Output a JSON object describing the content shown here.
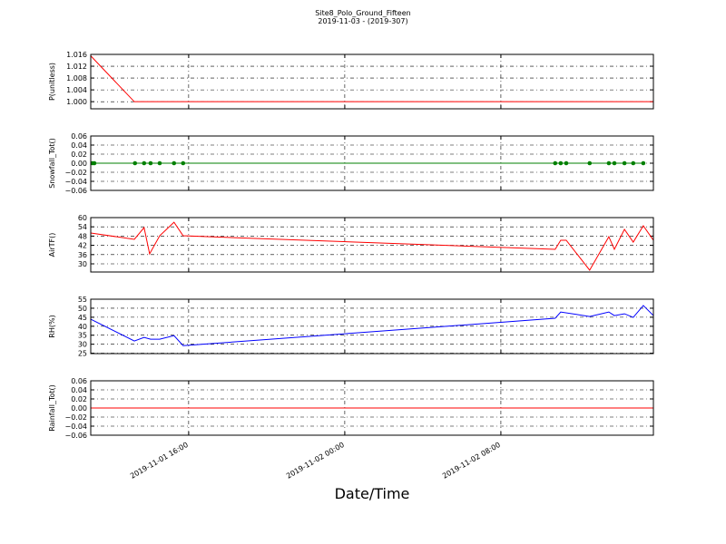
{
  "figure": {
    "title": "Site8_Polo_Ground_Fifteen",
    "subtitle": "2019-11-03 - (2019-307)",
    "x_label": "Date/Time",
    "xlim": [
      "2019-11-01 10:59",
      "2019-11-02 15:49"
    ],
    "xticks": [
      "2019-11-01 16:00",
      "2019-11-02 00:00",
      "2019-11-02 08:00"
    ]
  },
  "chart_data": [
    {
      "type": "line",
      "y_label": "P(unitless)",
      "color": "#ff0000",
      "grid": true,
      "x": [
        "2019-11-01 10:59",
        "2019-11-01 13:13",
        "2019-11-02 15:49"
      ],
      "values": [
        1.0155,
        1.0,
        1.0
      ],
      "ylim": [
        0.9976,
        1.016
      ],
      "yticks": [
        {
          "value": 1.0,
          "label": "1.000"
        },
        1.004,
        1.008,
        1.012,
        1.016
      ]
    },
    {
      "type": "line",
      "markers": true,
      "y_label": "Snowfall_Tot()",
      "color": "#008000",
      "grid": true,
      "x": [
        "2019-11-01 11:04",
        "2019-11-01 11:10",
        "2019-11-01 13:15",
        "2019-11-01 13:43",
        "2019-11-01 14:03",
        "2019-11-01 14:31",
        "2019-11-01 15:15",
        "2019-11-01 15:43",
        "2019-11-02 10:47",
        "2019-11-02 11:04",
        "2019-11-02 11:21",
        "2019-11-02 12:33",
        "2019-11-02 13:32",
        "2019-11-02 13:49",
        "2019-11-02 14:20",
        "2019-11-02 14:47",
        "2019-11-02 15:18"
      ],
      "values": [
        0,
        0,
        0,
        0,
        0,
        0,
        0,
        0,
        0,
        0,
        0,
        0,
        0,
        0,
        0,
        0,
        0
      ],
      "ylim": [
        -0.06,
        0.06
      ],
      "yticks": [
        {
          "value": -0.06,
          "label": "−0.06"
        },
        {
          "value": -0.04,
          "label": "−0.04"
        },
        {
          "value": -0.02,
          "label": "−0.02"
        },
        {
          "value": 0,
          "label": "0.00"
        },
        0.02,
        0.04,
        0.06
      ]
    },
    {
      "type": "line",
      "y_label": "AirTF()",
      "color": "#ff0000",
      "grid": true,
      "x": [
        "2019-11-01 10:59",
        "2019-11-01 13:13",
        "2019-11-01 13:43",
        "2019-11-01 14:00",
        "2019-11-01 14:31",
        "2019-11-01 15:15",
        "2019-11-01 15:43",
        "2019-11-02 10:47",
        "2019-11-02 11:04",
        "2019-11-02 11:21",
        "2019-11-02 12:33",
        "2019-11-02 13:32",
        "2019-11-02 13:49",
        "2019-11-02 14:20",
        "2019-11-02 14:47",
        "2019-11-02 15:18",
        "2019-11-02 15:49"
      ],
      "values": [
        50,
        45.9,
        53.5,
        36.5,
        48.2,
        57,
        48.2,
        39.4,
        45.3,
        45.3,
        25.9,
        47.6,
        39.4,
        52.4,
        44.1,
        54.7,
        45.3
      ],
      "ylim": [
        24.7,
        60
      ],
      "yticks": [
        30,
        36,
        42,
        48,
        54,
        60
      ]
    },
    {
      "type": "line",
      "y_label": "RH(%)",
      "color": "#0000ff",
      "grid": true,
      "x": [
        "2019-11-01 10:59",
        "2019-11-01 13:13",
        "2019-11-01 13:43",
        "2019-11-01 14:03",
        "2019-11-01 14:31",
        "2019-11-01 15:15",
        "2019-11-01 15:43",
        "2019-11-02 10:47",
        "2019-11-02 11:04",
        "2019-11-02 12:33",
        "2019-11-02 13:32",
        "2019-11-02 13:49",
        "2019-11-02 14:20",
        "2019-11-02 14:47",
        "2019-11-02 15:18",
        "2019-11-02 15:49"
      ],
      "values": [
        43.9,
        31.8,
        33.8,
        32.8,
        32.8,
        34.8,
        29.2,
        44.4,
        47.9,
        45.4,
        47.9,
        45.9,
        46.9,
        44.9,
        51.5,
        45.9
      ],
      "ylim": [
        24.8,
        55
      ],
      "yticks": [
        25,
        30,
        35,
        40,
        45,
        50,
        55
      ]
    },
    {
      "type": "line",
      "y_label": "Rainfall_Tot()",
      "color": "#ff0000",
      "grid": true,
      "x": [
        "2019-11-01 10:59",
        "2019-11-02 15:49"
      ],
      "values": [
        0,
        0
      ],
      "ylim": [
        -0.06,
        0.06
      ],
      "yticks": [
        {
          "value": -0.06,
          "label": "−0.06"
        },
        {
          "value": -0.04,
          "label": "−0.04"
        },
        {
          "value": -0.02,
          "label": "−0.02"
        },
        {
          "value": 0,
          "label": "0.00"
        },
        0.02,
        0.04,
        0.06
      ]
    }
  ]
}
